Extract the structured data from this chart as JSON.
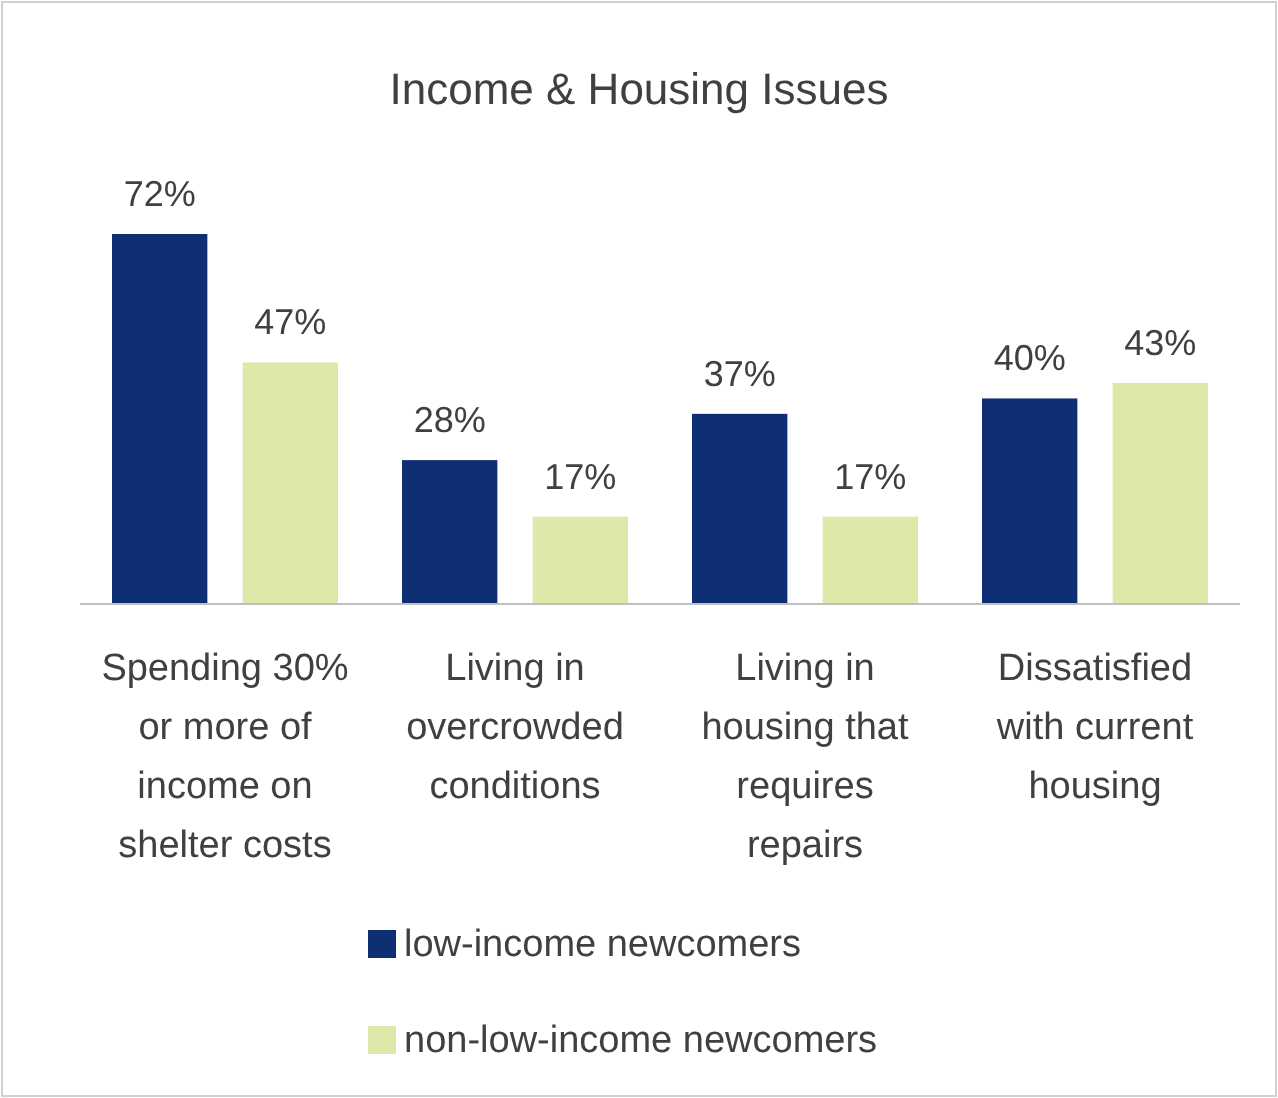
{
  "chart_data": {
    "type": "bar",
    "title": "Income & Housing Issues",
    "categories": [
      "Spending 30% or more of income on shelter costs",
      "Living in overcrowded conditions",
      "Living in housing that requires repairs",
      "Dissatisfied with current housing"
    ],
    "series": [
      {
        "name": "low-income newcomers",
        "color": "#0e2f74",
        "values": [
          72,
          28,
          37,
          40
        ],
        "value_labels": [
          "72%",
          "28%",
          "37%",
          "40%"
        ]
      },
      {
        "name": "non-low-income newcomers",
        "color": "#dfe8a8",
        "values": [
          47,
          17,
          17,
          43
        ],
        "value_labels": [
          "47%",
          "17%",
          "17%",
          "43%"
        ]
      }
    ],
    "legend": "bottom",
    "grid": false
  }
}
